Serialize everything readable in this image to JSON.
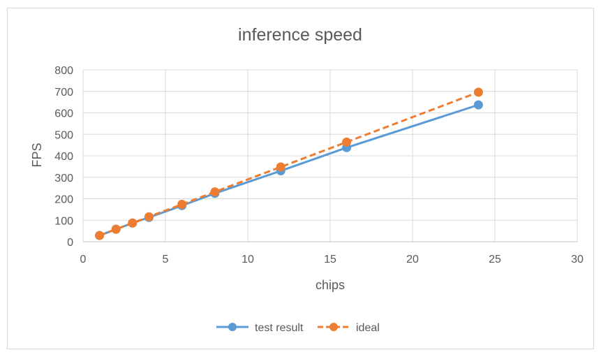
{
  "chart_data": {
    "type": "line",
    "title": "inference speed",
    "xlabel": "chips",
    "ylabel": "FPS",
    "xlim": [
      0,
      30
    ],
    "ylim": [
      0,
      800
    ],
    "xticks": [
      0,
      5,
      10,
      15,
      20,
      25,
      30
    ],
    "yticks": [
      0,
      100,
      200,
      300,
      400,
      500,
      600,
      700,
      800
    ],
    "grid": true,
    "legend_position": "bottom",
    "series": [
      {
        "name": "test result",
        "color": "#5b9bd5",
        "dash": "solid",
        "points": [
          {
            "x": 1,
            "y": 29
          },
          {
            "x": 2,
            "y": 58
          },
          {
            "x": 3,
            "y": 87
          },
          {
            "x": 4,
            "y": 113
          },
          {
            "x": 6,
            "y": 168
          },
          {
            "x": 8,
            "y": 225
          },
          {
            "x": 12,
            "y": 330
          },
          {
            "x": 16,
            "y": 438
          },
          {
            "x": 24,
            "y": 637
          }
        ]
      },
      {
        "name": "ideal",
        "color": "#ed7d31",
        "dash": "dashed",
        "points": [
          {
            "x": 1,
            "y": 29
          },
          {
            "x": 2,
            "y": 58
          },
          {
            "x": 3,
            "y": 87
          },
          {
            "x": 4,
            "y": 116
          },
          {
            "x": 6,
            "y": 174
          },
          {
            "x": 8,
            "y": 232
          },
          {
            "x": 12,
            "y": 348
          },
          {
            "x": 16,
            "y": 464
          },
          {
            "x": 24,
            "y": 696
          }
        ]
      }
    ]
  }
}
